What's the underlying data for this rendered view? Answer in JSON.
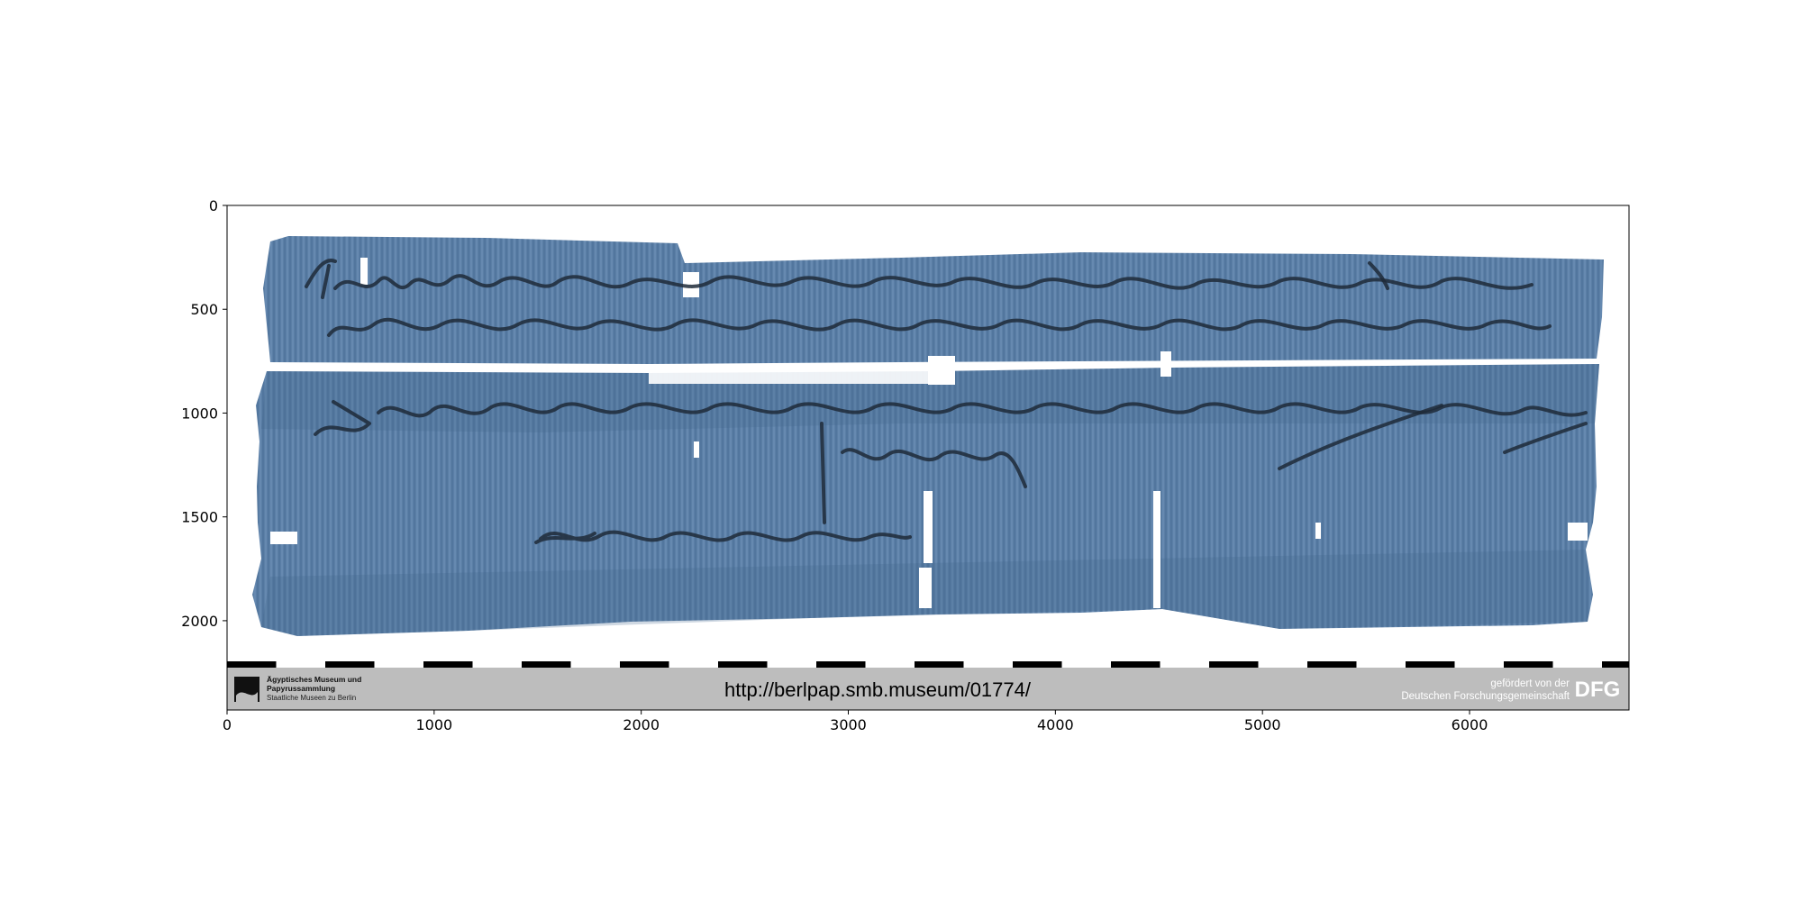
{
  "figure": {
    "x_ticks": [
      0,
      1000,
      2000,
      3000,
      4000,
      5000,
      6000
    ],
    "y_ticks": [
      0,
      500,
      1000,
      1500,
      2000
    ],
    "x_range": [
      0,
      6770
    ],
    "y_range": [
      0,
      2430
    ]
  },
  "banner": {
    "url": "http://berlpap.smb.museum/01774/",
    "museum_line1": "Ägyptisches Museum und",
    "museum_line2": "Papyrussammlung",
    "museum_line3": "Staatliche Museen zu Berlin",
    "dfg_line1": "gefördert von der",
    "dfg_line2": "Deutschen Forschungsgemeinschaft",
    "dfg_logo": "DFG"
  },
  "colors": {
    "papyrus": "#5b7fa6",
    "papyrus_dark": "#3f628a",
    "ink": "#1e2a38",
    "banner_bg": "#bdbdbd"
  }
}
